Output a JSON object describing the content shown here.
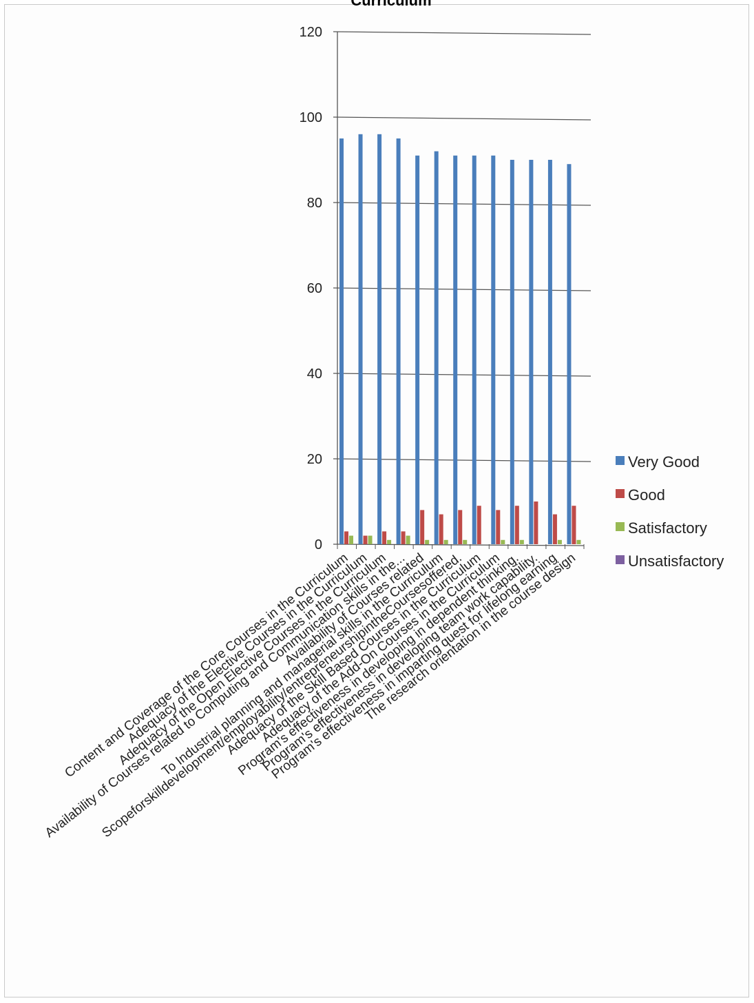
{
  "chart_data": {
    "type": "bar",
    "title": "Curriculum",
    "xlabel": "",
    "ylabel": "",
    "ylim": [
      0,
      120
    ],
    "yticks": [
      0,
      20,
      40,
      60,
      80,
      100,
      120
    ],
    "grid": true,
    "legend_position": "right",
    "categories": [
      "Content and Coverage of the Core Courses in the Curriculum",
      "Adequacy of the Elective Courses in the Curriculum",
      "Adequacy of the Open Elective Courses in the Curriculum",
      "Availability of Courses related to Computing and Communication skills in the...",
      "Availability of Courses related",
      "To Industrial planning and managerial skills in the Curriculum",
      "Scopeforskilldevelopment/employability/entrepreneurshipintheCoursesoffered.",
      "Adequacy of the Skill Based Courses in the Curriculum",
      "Adequacy of the Add-On Courses in the Curriculum",
      "Program's effectiveness in developing in dependent thinking.",
      "Program's effectiveness in developing team work capability.",
      "Program's effectiveness in imparting quest for lifelong earning",
      "The research orientation in the course design"
    ],
    "series": [
      {
        "name": "Very Good",
        "color": "#4a7ebb",
        "values": [
          95,
          96,
          96,
          95,
          91,
          92,
          91,
          91,
          91,
          90,
          90,
          90,
          89
        ]
      },
      {
        "name": "Good",
        "color": "#be4b48",
        "values": [
          3,
          2,
          3,
          3,
          8,
          7,
          8,
          9,
          8,
          9,
          10,
          7,
          9
        ]
      },
      {
        "name": "Satisfactory",
        "color": "#98b954",
        "values": [
          2,
          2,
          1,
          2,
          1,
          1,
          1,
          0,
          1,
          1,
          0,
          1,
          1
        ]
      },
      {
        "name": "Unsatisfactory",
        "color": "#7d60a0",
        "values": [
          0,
          0,
          0,
          0,
          0,
          0,
          0,
          0,
          0,
          0,
          0,
          0,
          0
        ]
      }
    ]
  }
}
